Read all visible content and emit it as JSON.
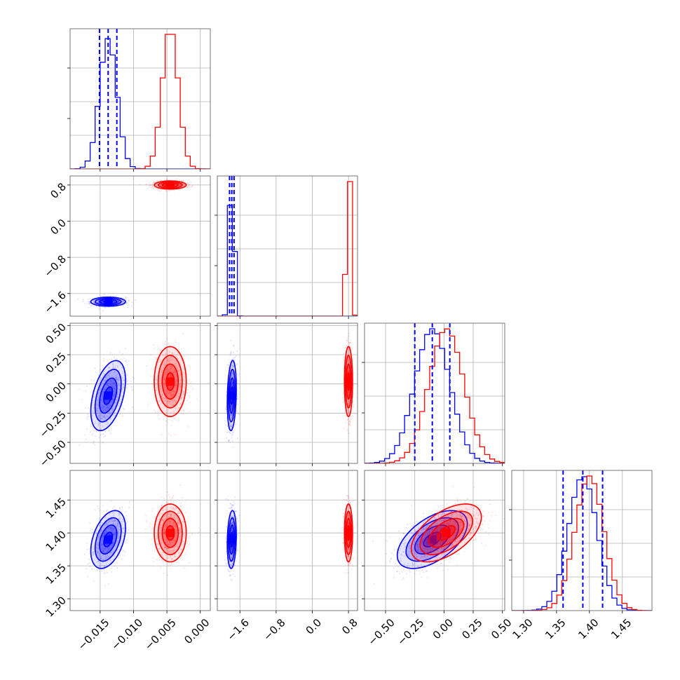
{
  "chart_data": {
    "type": "corner",
    "parameters": [
      {
        "id": "p0",
        "lim": [
          -0.0195,
          0.0015
        ],
        "ticks": [
          -0.015,
          -0.01,
          -0.005,
          0.0
        ],
        "ticklabels": [
          "−0.015",
          "−0.010",
          "−0.005",
          "0.000"
        ]
      },
      {
        "id": "p1",
        "lim": [
          -2.1,
          1.0
        ],
        "ticks": [
          -1.6,
          -0.8,
          0.0,
          0.8
        ],
        "ticklabels": [
          "−1.6",
          "−0.8",
          "0.0",
          "0.8"
        ]
      },
      {
        "id": "p2",
        "lim": [
          -0.68,
          0.52
        ],
        "ticks": [
          -0.5,
          -0.25,
          0.0,
          0.25,
          0.5
        ],
        "ticklabels": [
          "−0.50",
          "−0.25",
          "0.00",
          "0.25",
          "0.50"
        ]
      },
      {
        "id": "p3",
        "lim": [
          1.282,
          1.495
        ],
        "ticks": [
          1.3,
          1.35,
          1.4,
          1.45
        ],
        "ticklabels": [
          "1.30",
          "1.35",
          "1.40",
          "1.45"
        ]
      }
    ],
    "series": [
      {
        "color": "#0000ff",
        "mean": [
          -0.0138,
          -1.78,
          -0.1,
          1.39
        ],
        "sd": [
          0.0013,
          0.05,
          0.15,
          0.022
        ],
        "corr": {
          "0_2": 0.45,
          "0_3": 0.4,
          "1_2": 0.2,
          "1_3": 0.15,
          "2_3": 0.55
        },
        "quantile_lines": [
          [
            -0.0151,
            -0.0138,
            -0.0125
          ],
          [
            -1.83,
            -1.78,
            -1.73
          ],
          [
            -0.25,
            -0.1,
            0.05
          ],
          [
            1.36,
            1.39,
            1.42
          ]
        ]
      },
      {
        "color": "#ff0000",
        "mean": [
          -0.0045,
          0.8,
          0.02,
          1.4
        ],
        "sd": [
          0.0012,
          0.045,
          0.15,
          0.022
        ],
        "corr": {
          "0_2": 0.0,
          "0_3": 0.0,
          "1_2": 0.0,
          "1_3": 0.0,
          "2_3": 0.55
        },
        "quantile_lines": []
      }
    ],
    "contour_levels_sigma": [
      0.5,
      1.0,
      1.5,
      2.0
    ],
    "grid": true,
    "title": "",
    "xlabel": "",
    "ylabel": ""
  }
}
